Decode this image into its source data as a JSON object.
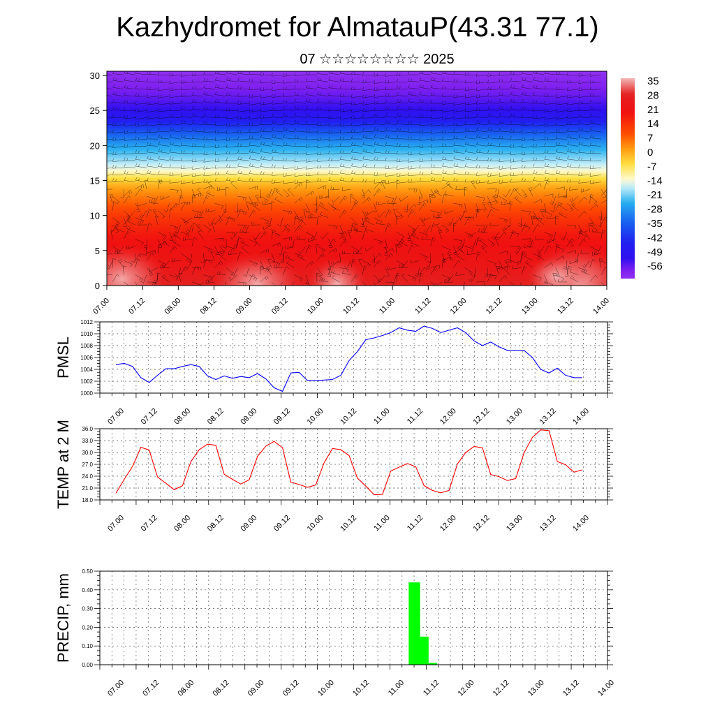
{
  "page": {
    "title": "Kazhydromet for AlmatauP(43.31 77.1)",
    "subtitle": "07 ☆☆☆☆☆☆☆☆ 2025"
  },
  "colors": {
    "pmsl_line": "#0000ff",
    "temp_line": "#ff0000",
    "precip_bar": "#00ff00",
    "frame": "#000000"
  },
  "chart_data": [
    {
      "type": "heatmap",
      "name": "cross-section",
      "x_tick_labels": [
        "07.00",
        "07.12",
        "08.00",
        "08.12",
        "09.00",
        "09.12",
        "10.00",
        "10.12",
        "11.00",
        "11.12",
        "12.00",
        "12.12",
        "13.00",
        "13.12",
        "14.00"
      ],
      "y_tick_labels": [
        "0",
        "5",
        "10",
        "15",
        "20",
        "25",
        "30"
      ],
      "ylim": [
        0,
        30.6
      ],
      "colorbar_labels": [
        "35",
        "28",
        "21",
        "14",
        "7",
        "0",
        "-7",
        "-14",
        "-21",
        "-28",
        "-35",
        "-42",
        "-49",
        "-56"
      ],
      "color_stops": [
        {
          "v": 38,
          "c": "#f3b8b8"
        },
        {
          "v": 35,
          "c": "#ee8080"
        },
        {
          "v": 30,
          "c": "#e42020"
        },
        {
          "v": 21,
          "c": "#f01010"
        },
        {
          "v": 10,
          "c": "#ff5000"
        },
        {
          "v": 3,
          "c": "#ff9a10"
        },
        {
          "v": -5,
          "c": "#ffe040"
        },
        {
          "v": -12,
          "c": "#fff8c8"
        },
        {
          "v": -16,
          "c": "#c8f0f8"
        },
        {
          "v": -24,
          "c": "#28b0f0"
        },
        {
          "v": -34,
          "c": "#1860f0"
        },
        {
          "v": -44,
          "c": "#2020f0"
        },
        {
          "v": -52,
          "c": "#3010f0"
        },
        {
          "v": -58,
          "c": "#8020f0"
        },
        {
          "v": -62,
          "c": "#9030f0"
        }
      ],
      "profile": [
        {
          "z": 0,
          "t": 30
        },
        {
          "z": 3,
          "t": 24
        },
        {
          "z": 7,
          "t": 20
        },
        {
          "z": 10,
          "t": 14
        },
        {
          "z": 12,
          "t": 8
        },
        {
          "z": 14,
          "t": 2
        },
        {
          "z": 15.5,
          "t": -6
        },
        {
          "z": 16.3,
          "t": -12
        },
        {
          "z": 17.5,
          "t": -17
        },
        {
          "z": 20,
          "t": -26
        },
        {
          "z": 22,
          "t": -36
        },
        {
          "z": 24,
          "t": -48
        },
        {
          "z": 25.2,
          "t": -52
        },
        {
          "z": 27,
          "t": -56
        },
        {
          "z": 30.6,
          "t": -62
        }
      ]
    },
    {
      "type": "line",
      "name": "pmsl",
      "ylabel": "PMSL",
      "ylim": [
        1000,
        1012
      ],
      "y_tick_labels": [
        "1000",
        "1002",
        "1004",
        "1006",
        "1008",
        "1010",
        "1012"
      ],
      "x_tick_labels": [
        "07.00",
        "07.12",
        "08.00",
        "08.12",
        "09.00",
        "09.12",
        "10.00",
        "10.12",
        "11.00",
        "11.12",
        "12.00",
        "12.12",
        "13.00",
        "13.12",
        "14.00"
      ],
      "x": [
        0,
        3,
        6,
        9,
        12,
        15,
        18,
        21,
        24,
        27,
        30,
        33,
        36,
        39,
        42,
        45,
        48,
        51,
        54,
        57,
        60,
        63,
        66,
        69,
        72,
        75,
        78,
        81,
        84,
        87,
        90,
        93,
        96,
        99,
        102,
        105,
        108,
        111,
        114,
        117,
        120,
        123,
        126,
        129,
        132,
        135,
        138,
        141,
        144,
        147,
        150,
        153,
        156,
        159,
        162,
        165,
        168
      ],
      "series": [
        {
          "values": [
            1004.8,
            1005.0,
            1004.5,
            1002.6,
            1001.8,
            1003.0,
            1004.1,
            1004.1,
            1004.5,
            1004.8,
            1004.5,
            1002.9,
            1002.3,
            1002.9,
            1002.5,
            1002.8,
            1002.6,
            1003.3,
            1002.4,
            1000.9,
            1000.3,
            1003.4,
            1003.5,
            1002.1,
            1002.1,
            1002.2,
            1002.3,
            1003.0,
            1005.5,
            1007.0,
            1009.0,
            1009.3,
            1009.7,
            1010.2,
            1011.0,
            1010.6,
            1010.4,
            1011.3,
            1010.9,
            1010.2,
            1010.6,
            1011.0,
            1010.2,
            1008.8,
            1008.0,
            1008.6,
            1007.8,
            1007.2,
            1007.2,
            1007.2,
            1006.0,
            1004.0,
            1003.4,
            1004.2,
            1003.0,
            1002.6,
            1002.6
          ]
        }
      ]
    },
    {
      "type": "line",
      "name": "temp",
      "ylabel": "TEMP at 2 M",
      "ylim": [
        18,
        36
      ],
      "y_tick_labels": [
        "18.0",
        "21.0",
        "24.0",
        "27.0",
        "30.0",
        "33.0",
        "36.0"
      ],
      "x_tick_labels": [
        "07.00",
        "07.12",
        "08.00",
        "08.12",
        "09.00",
        "09.12",
        "10.00",
        "10.12",
        "11.00",
        "11.12",
        "12.00",
        "12.12",
        "13.00",
        "13.12",
        "14.00"
      ],
      "x": [
        0,
        3,
        6,
        9,
        12,
        15,
        18,
        21,
        24,
        27,
        30,
        33,
        36,
        39,
        42,
        45,
        48,
        51,
        54,
        57,
        60,
        63,
        66,
        69,
        72,
        75,
        78,
        81,
        84,
        87,
        90,
        93,
        96,
        99,
        102,
        105,
        108,
        111,
        114,
        117,
        120,
        123,
        126,
        129,
        132,
        135,
        138,
        141,
        144,
        147,
        150,
        153,
        156,
        159,
        162,
        165,
        168
      ],
      "series": [
        {
          "values": [
            19.7,
            23.2,
            26.5,
            31.3,
            30.6,
            23.8,
            22.2,
            20.6,
            21.6,
            27.7,
            30.7,
            32.1,
            31.8,
            24.5,
            23.2,
            22.0,
            23.1,
            29.0,
            31.6,
            32.8,
            31.2,
            22.5,
            21.9,
            21.2,
            21.8,
            27.4,
            31.0,
            30.7,
            29.2,
            23.5,
            21.5,
            19.3,
            19.4,
            25.3,
            26.3,
            27.2,
            26.4,
            21.6,
            20.4,
            19.8,
            20.4,
            27.1,
            30.0,
            31.5,
            31.2,
            24.4,
            23.9,
            22.9,
            23.4,
            29.9,
            33.8,
            35.7,
            35.5,
            27.7,
            26.9,
            25.0,
            25.6
          ]
        }
      ]
    },
    {
      "type": "bar",
      "name": "precip",
      "ylabel": "PRECIP, mm",
      "ylim": [
        0,
        0.5
      ],
      "y_tick_labels": [
        "0.00",
        "0.10",
        "0.20",
        "0.30",
        "0.40",
        "0.50"
      ],
      "x_tick_labels": [
        "07.00",
        "07.12",
        "08.00",
        "08.12",
        "09.00",
        "09.12",
        "10.00",
        "10.12",
        "11.00",
        "11.12",
        "12.00",
        "12.12",
        "13.00",
        "13.12",
        "14.00"
      ],
      "bars": [
        {
          "x": 99,
          "value": 0.44
        },
        {
          "x": 102,
          "value": 0.15
        },
        {
          "x": 105,
          "value": 0.01
        }
      ]
    }
  ]
}
